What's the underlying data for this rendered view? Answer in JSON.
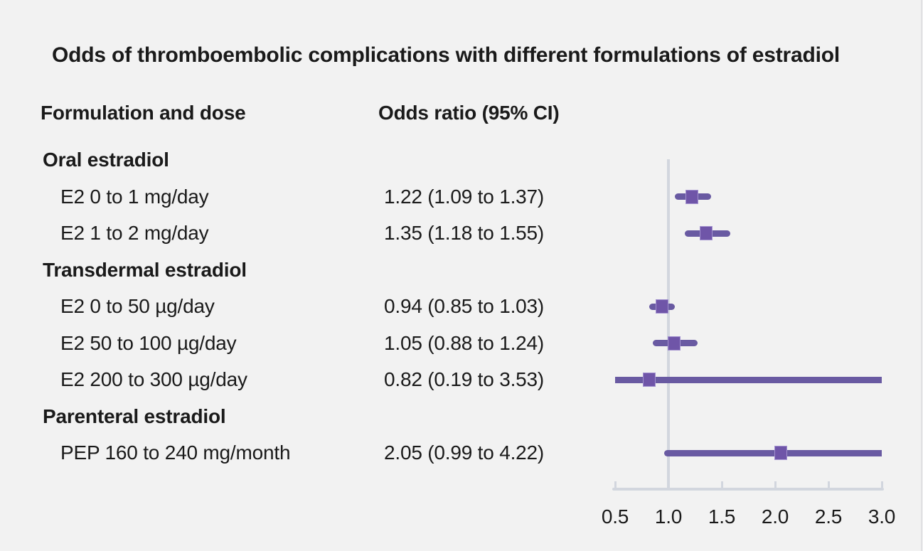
{
  "title": "Odds of thromboembolic complications with different formulations of estradiol",
  "columns": {
    "formulation": "Formulation and dose",
    "odds_ratio": "Odds ratio (95% CI)"
  },
  "chart_data": {
    "type": "forest",
    "title": "Odds of thromboembolic complications with different formulations of estradiol",
    "xlabel": "",
    "legend": "none",
    "axis": {
      "min": 0.5,
      "max": 3.0,
      "tick_values": [
        0.5,
        1.0,
        1.5,
        2.0,
        2.5,
        3.0
      ],
      "tick_labels": [
        "0.5",
        "1.0",
        "1.5",
        "2.0",
        "2.5",
        "3.0"
      ],
      "reference_line": 1.0
    },
    "rows": [
      {
        "type": "group",
        "label": "Oral estradiol"
      },
      {
        "type": "item",
        "label": "E2 0 to 1 mg/day",
        "display": "1.22 (1.09 to 1.37)",
        "estimate": 1.22,
        "ci_low": 1.09,
        "ci_high": 1.37
      },
      {
        "type": "item",
        "label": "E2 1 to 2 mg/day",
        "display": "1.35 (1.18 to 1.55)",
        "estimate": 1.35,
        "ci_low": 1.18,
        "ci_high": 1.55
      },
      {
        "type": "group",
        "label": "Transdermal estradiol"
      },
      {
        "type": "item",
        "label": "E2 0 to 50 µg/day",
        "display": "0.94 (0.85 to 1.03)",
        "estimate": 0.94,
        "ci_low": 0.85,
        "ci_high": 1.03
      },
      {
        "type": "item",
        "label": "E2 50 to 100 µg/day",
        "display": "1.05 (0.88 to 1.24)",
        "estimate": 1.05,
        "ci_low": 0.88,
        "ci_high": 1.24
      },
      {
        "type": "item",
        "label": "E2 200 to 300 µg/day",
        "display": "0.82 (0.19 to 3.53)",
        "estimate": 0.82,
        "ci_low": 0.19,
        "ci_high": 3.53
      },
      {
        "type": "group",
        "label": "Parenteral estradiol"
      },
      {
        "type": "item",
        "label": "PEP 160 to 240 mg/month",
        "display": "2.05 (0.99 to 4.22)",
        "estimate": 2.05,
        "ci_low": 0.99,
        "ci_high": 4.22
      }
    ]
  },
  "colors": {
    "background": "#f2f2f2",
    "text": "#1a1a1a",
    "ci_line": "#695aa2",
    "marker": "#6f55a8",
    "marker_border": "#a291cf",
    "axis": "#d2d6de",
    "edge_line": "#e1e1e3"
  }
}
